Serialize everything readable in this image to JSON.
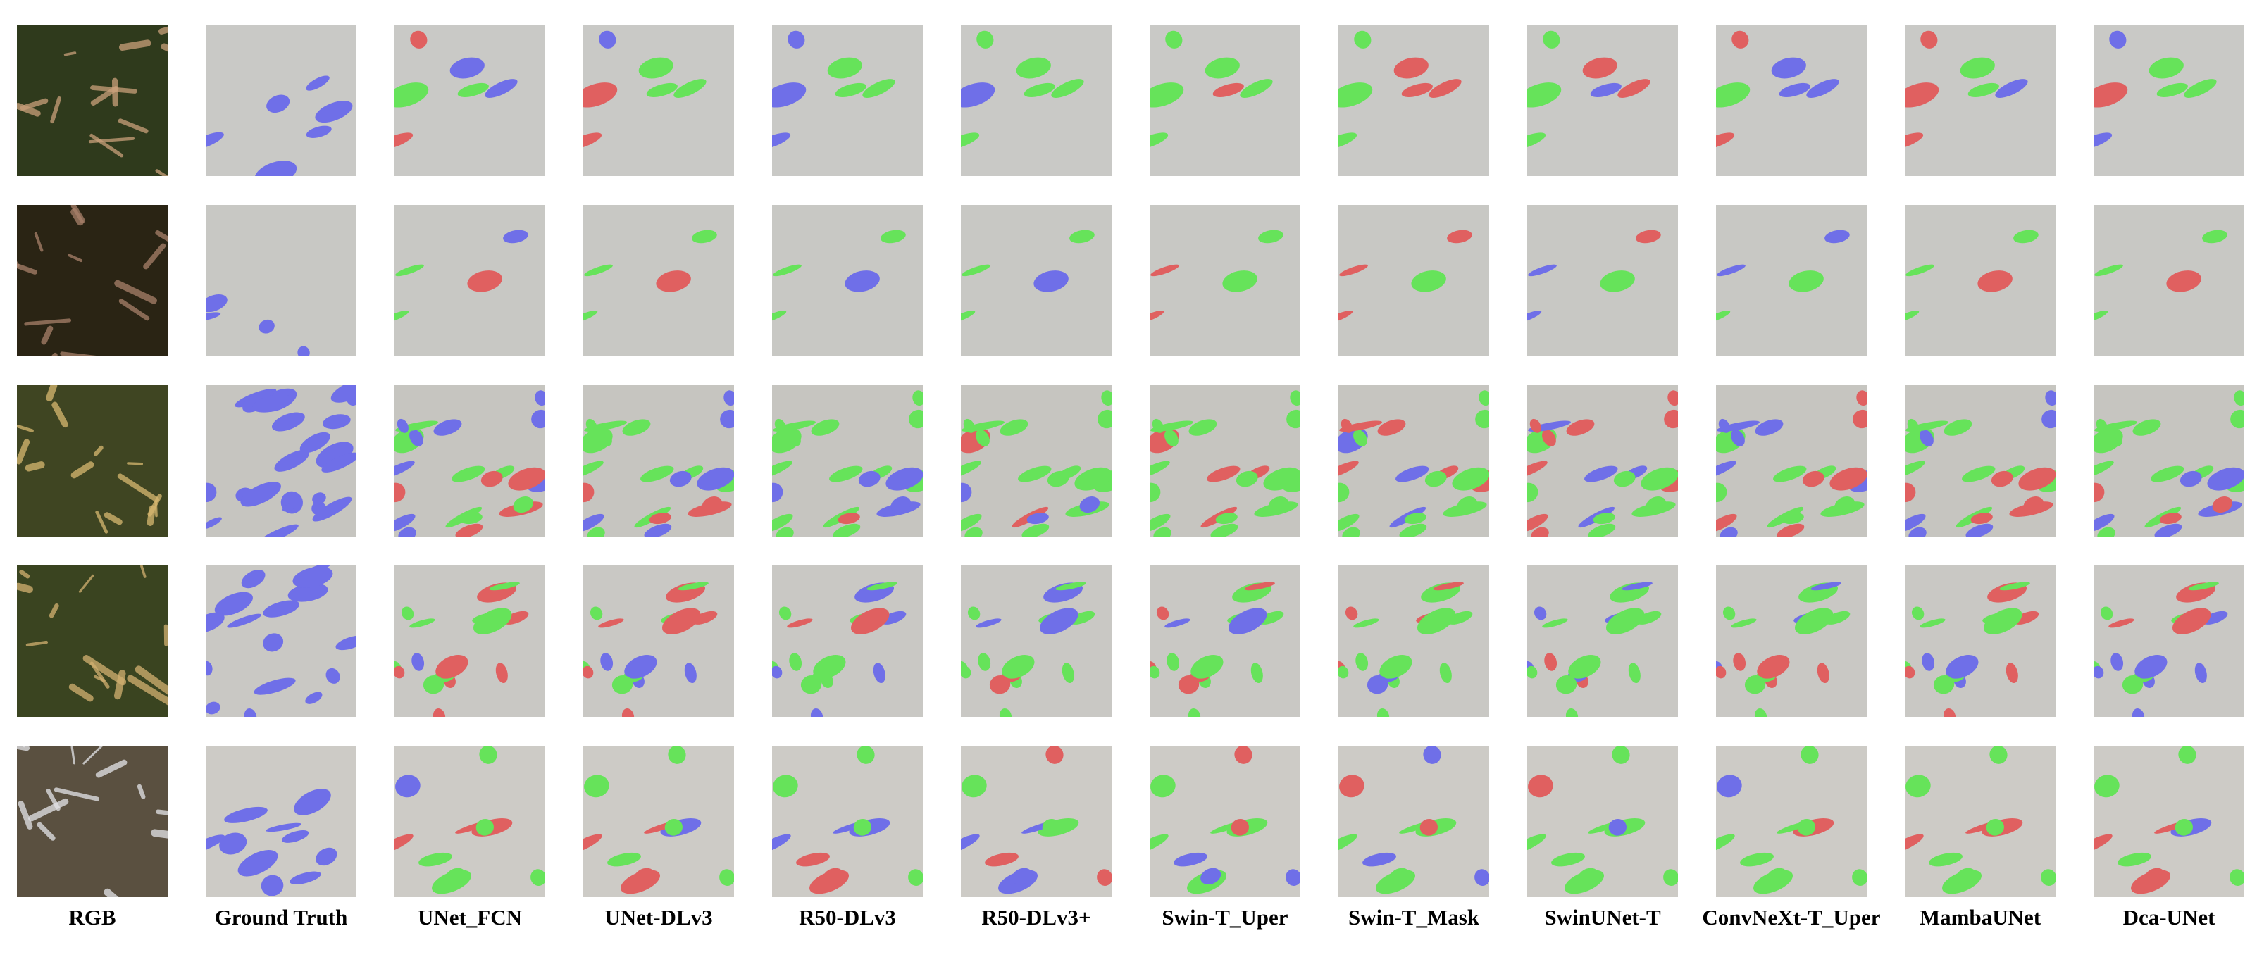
{
  "columns": [
    "RGB",
    "Ground Truth",
    "UNet_FCN",
    "UNet-DLv3",
    "R50-DLv3",
    "R50-DLv3+",
    "Swin-T_Uper",
    "Swin-T_Mask",
    "SwinUNet-T",
    "ConvNeXt-T_Uper",
    "MambaUNet",
    "Dca-UNet"
  ]
}
